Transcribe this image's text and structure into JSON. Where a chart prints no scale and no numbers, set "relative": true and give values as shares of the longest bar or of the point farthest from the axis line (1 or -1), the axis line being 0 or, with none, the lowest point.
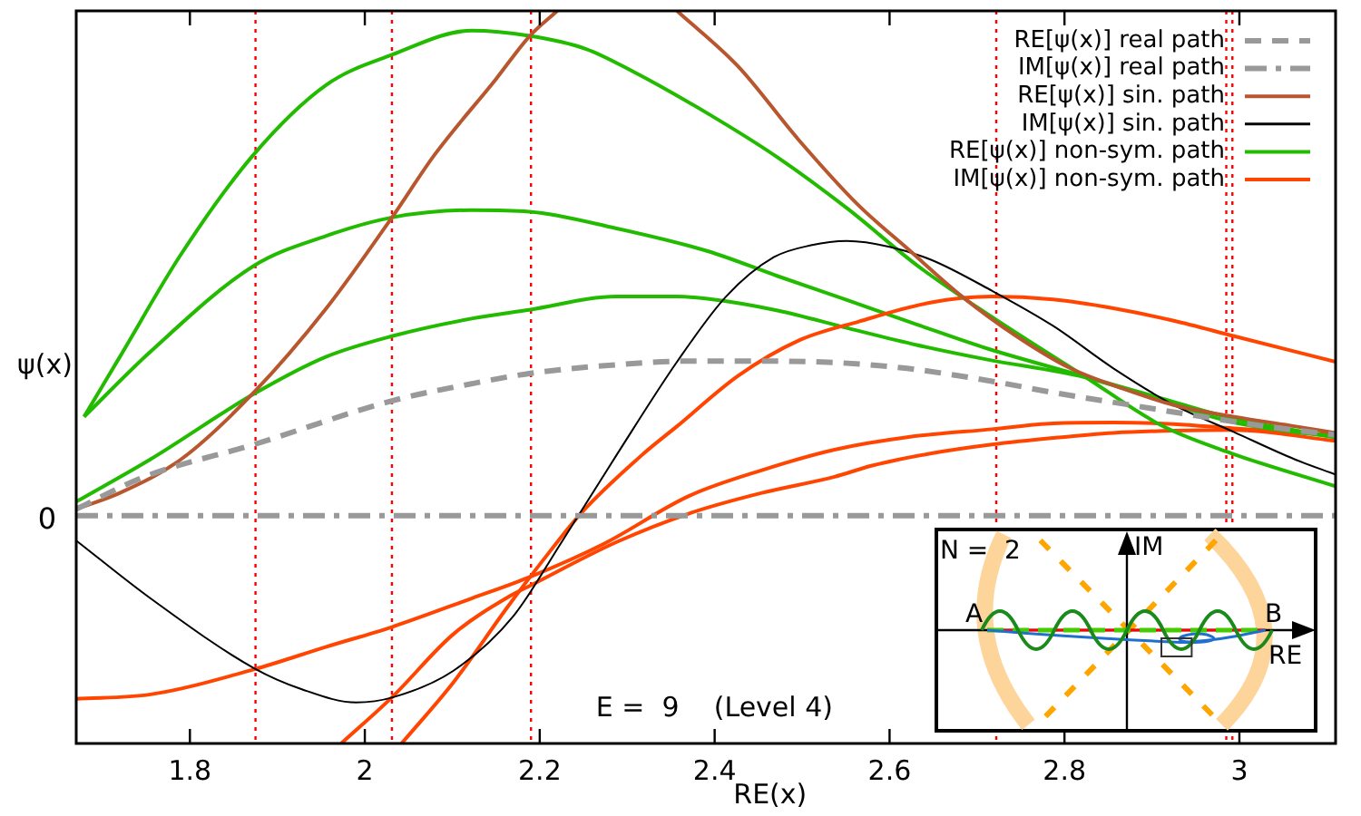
{
  "chart_data": {
    "type": "line",
    "relative": true,
    "xlabel": "RE(x)",
    "ylabel": "ψ(x)",
    "xlim": [
      1.67,
      3.11
    ],
    "xticks": [
      1.8,
      2,
      2.2,
      2.4,
      2.6,
      2.8,
      3
    ],
    "legend": "top right",
    "marker": "none",
    "ref_lines": [
      {
        "axis": "x",
        "value": 1.875,
        "color": "#ff0000",
        "line_style": "dotted"
      },
      {
        "axis": "x",
        "value": 2.031,
        "color": "#ff0000",
        "line_style": "dotted"
      },
      {
        "axis": "x",
        "value": 2.19,
        "color": "#ff0000",
        "line_style": "dotted"
      },
      {
        "axis": "x",
        "value": 2.722,
        "color": "#ff0000",
        "line_style": "dotted"
      },
      {
        "axis": "x",
        "value": 2.985,
        "color": "#ff0000",
        "line_style": "dotted"
      },
      {
        "axis": "x",
        "value": 2.992,
        "color": "#ff0000",
        "line_style": "dotted"
      }
    ],
    "annotations": [
      {
        "text": "0",
        "x": 1.67,
        "y": 0.311
      },
      "E =  9    (Level 4)",
      "N =  2",
      "IM",
      "A",
      "B",
      "RE"
    ],
    "series": [
      {
        "name": "RE[ψ(x)] real path",
        "color": "#999999",
        "line_style": "dashed",
        "x": [
          1.67,
          1.748,
          1.873,
          2.032,
          2.122,
          2.188,
          2.288,
          2.371,
          2.454,
          2.537,
          2.62,
          2.724,
          2.787,
          2.87,
          2.953,
          3.029,
          3.11
        ],
        "values": [
          0.32,
          0.364,
          0.408,
          0.468,
          0.491,
          0.505,
          0.517,
          0.522,
          0.522,
          0.52,
          0.512,
          0.493,
          0.479,
          0.463,
          0.447,
          0.433,
          0.421
        ]
      },
      {
        "name": "IM[ψ(x)] real path",
        "color": "#999999",
        "line_style": "dashdot",
        "x": [
          1.67,
          3.11
        ],
        "values": [
          0.311,
          0.311
        ]
      },
      {
        "name": "RE[ψ(x)] sin. path",
        "color": "#b8572e",
        "x": [
          1.67,
          1.72,
          1.79,
          1.873,
          1.956,
          2.031,
          2.08,
          2.15,
          2.188,
          2.22,
          2.29,
          2.357,
          2.427,
          2.496,
          2.565,
          2.62,
          2.683,
          2.745,
          2.807,
          2.87,
          2.925,
          2.994,
          3.063,
          3.11
        ],
        "values": [
          0.32,
          0.342,
          0.388,
          0.479,
          0.594,
          0.718,
          0.804,
          0.907,
          0.965,
          1,
          null,
          1,
          0.924,
          0.824,
          0.734,
          0.676,
          0.61,
          0.556,
          0.512,
          0.483,
          0.462,
          0.446,
          0.433,
          0.424
        ]
      },
      {
        "name": "IM[ψ(x)] sin. path",
        "color": "#000000",
        "x": [
          1.67,
          1.755,
          1.873,
          1.928,
          1.99,
          2.032,
          2.101,
          2.17,
          2.224,
          2.288,
          2.357,
          2.413,
          2.468,
          2.51,
          2.551,
          2.6,
          2.648,
          2.717,
          2.787,
          2.856,
          2.925,
          2.994,
          3.063,
          3.11
        ],
        "values": [
          0.277,
          0.198,
          0.103,
          0.074,
          0.056,
          0.063,
          0.099,
          0.174,
          0.273,
          0.394,
          0.521,
          0.61,
          0.664,
          0.68,
          0.686,
          0.678,
          0.66,
          0.618,
          0.57,
          0.512,
          0.462,
          0.425,
          0.388,
          0.367
        ]
      },
      {
        "name": "RE[ψ(x)] non-sym. path",
        "color": "#22bb00",
        "x": [
          1.679,
          1.72,
          1.79,
          1.873,
          1.956,
          2.031,
          2.122,
          2.188,
          2.253,
          2.304,
          2.392,
          2.472,
          2.552,
          2.631,
          2.712,
          2.823,
          2.911,
          2.991,
          3.11
        ],
        "values": [
          0.446,
          0.528,
          0.668,
          0.804,
          0.899,
          0.94,
          0.973,
          0.966,
          0.948,
          0.919,
          0.86,
          0.8,
          0.73,
          0.653,
          0.586,
          0.501,
          0.434,
          0.396,
          0.351
        ]
      },
      {
        "name": "IM[ψ(x)] non-sym. path",
        "color": "#ff4500",
        "x": [
          2.042,
          2.101,
          2.163,
          2.205,
          2.247,
          2.319,
          2.357,
          2.427,
          2.496,
          2.565,
          2.648,
          2.717,
          2.787,
          2.856,
          2.925,
          2.994,
          3.11
        ],
        "values": [
          0,
          0.083,
          0.186,
          0.252,
          0.314,
          0.396,
          0.433,
          0.502,
          0.55,
          0.576,
          0.602,
          0.61,
          0.606,
          0.594,
          0.577,
          0.556,
          0.521
        ]
      },
      {
        "color": "#22bb00",
        "x": [
          1.679,
          1.755,
          1.873,
          1.956,
          2.031,
          2.122,
          2.188,
          2.288,
          2.392,
          2.472,
          2.552,
          2.631,
          2.712,
          2.823,
          2.911,
          2.991,
          3.11
        ],
        "values": [
          0.446,
          0.535,
          0.652,
          0.693,
          0.718,
          0.728,
          0.726,
          0.703,
          0.672,
          0.638,
          0.605,
          0.572,
          0.539,
          0.501,
          0.471,
          0.444,
          0.418
        ]
      },
      {
        "color": "#22bb00",
        "x": [
          1.67,
          1.755,
          1.873,
          1.956,
          2.031,
          2.122,
          2.188,
          2.288,
          2.357,
          2.392,
          2.472,
          2.552,
          2.631,
          2.712,
          2.823,
          2.911,
          2.991,
          3.11
        ],
        "values": [
          0.33,
          0.388,
          0.477,
          0.528,
          0.556,
          0.58,
          0.592,
          0.61,
          0.61,
          0.607,
          0.591,
          0.567,
          0.544,
          0.524,
          0.5,
          0.468,
          0.439,
          0.418
        ]
      },
      {
        "color": "#ff4500",
        "x": [
          1.67,
          1.755,
          1.873,
          1.956,
          2.031,
          2.122,
          2.188,
          2.274,
          2.371,
          2.454,
          2.537,
          2.62,
          2.717,
          2.787,
          2.856,
          2.925,
          2.994,
          3.11
        ],
        "values": [
          0.061,
          0.067,
          0.101,
          0.132,
          0.159,
          0.198,
          0.227,
          0.273,
          0.338,
          0.373,
          0.401,
          0.418,
          0.429,
          0.437,
          0.438,
          0.436,
          0.43,
          0.421
        ]
      },
      {
        "color": "#ff4500",
        "x": [
          1.973,
          2.031,
          2.101,
          2.167,
          2.19,
          2.288,
          2.371,
          2.454,
          2.537,
          2.579,
          2.648,
          2.717,
          2.787,
          2.856,
          2.925,
          2.994,
          3.11
        ],
        "values": [
          0,
          0.063,
          0.149,
          0.202,
          0.216,
          0.275,
          0.314,
          0.342,
          0.364,
          0.379,
          0.396,
          0.408,
          0.417,
          0.424,
          0.427,
          0.428,
          0.413
        ]
      }
    ]
  }
}
